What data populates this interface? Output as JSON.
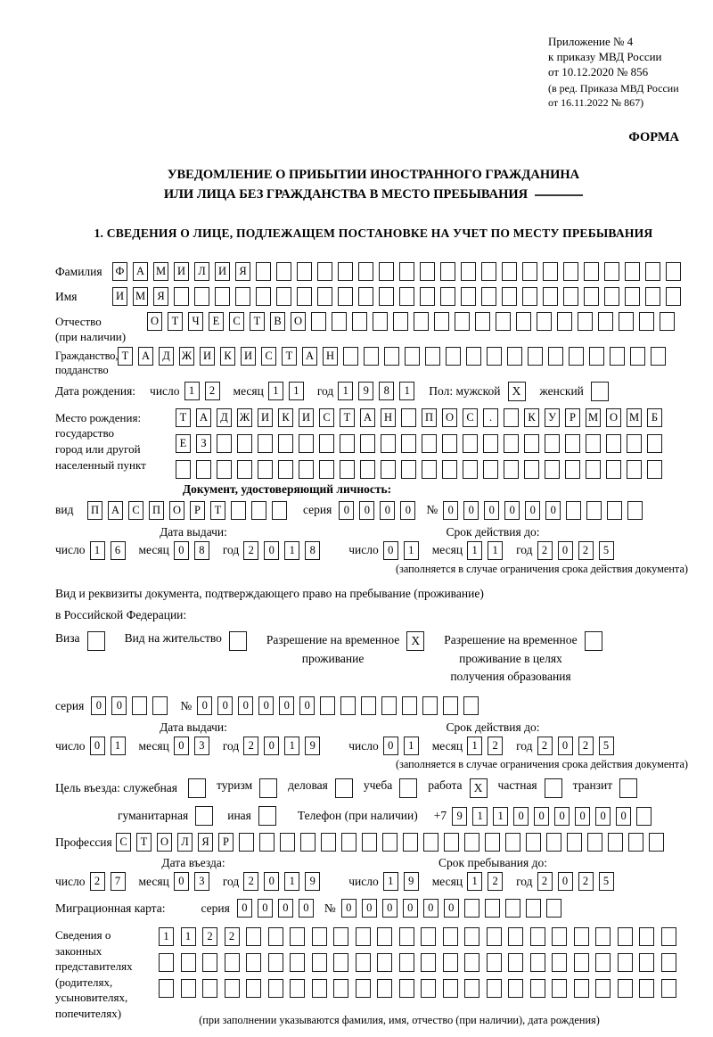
{
  "header": {
    "line1": "Приложение № 4",
    "line2": "к приказу МВД России",
    "line3": "от 10.12.2020 № 856",
    "line4": "(в ред. Приказа МВД России",
    "line5": "от 16.11.2022 № 867)",
    "form_label": "ФОРМА"
  },
  "title": {
    "line1": "УВЕДОМЛЕНИЕ О ПРИБЫТИИ ИНОСТРАННОГО ГРАЖДАНИНА",
    "line2": "ИЛИ ЛИЦА БЕЗ ГРАЖДАНСТВА В МЕСТО ПРЕБЫВАНИЯ"
  },
  "section1": {
    "heading": "1. СВЕДЕНИЯ О ЛИЦЕ, ПОДЛЕЖАЩЕМ ПОСТАНОВКЕ НА УЧЕТ ПО МЕСТУ ПРЕБЫВАНИЯ"
  },
  "labels": {
    "day": "число",
    "month": "месяц",
    "year": "год",
    "series": "серия",
    "number": "№"
  },
  "surname": {
    "label": "Фамилия",
    "n": 28,
    "v": "ФАМИЛИЯ"
  },
  "given_name": {
    "label": "Имя",
    "n": 28,
    "v": "ИМЯ"
  },
  "patronymic": {
    "label1": "Отчество",
    "label2": "(при наличии)",
    "n": 26,
    "v": "ОТЧЕСТВО"
  },
  "citizenship": {
    "label1": "Гражданство,",
    "label2": "подданство",
    "n": 27,
    "v": "ТАДЖИКИСТАН"
  },
  "birth_date": {
    "label": "Дата рождения:",
    "day": {
      "n": 2,
      "v": "12"
    },
    "month": {
      "n": 2,
      "v": "11"
    },
    "year": {
      "n": 4,
      "v": "1981"
    }
  },
  "sex": {
    "label": "Пол: мужской",
    "male_checked": true,
    "female_label": "женский",
    "female_checked": false
  },
  "birth_place": {
    "label1": "Место рождения:",
    "label2": "государство",
    "label3": "город или другой",
    "label4": "населенный пункт",
    "row1": {
      "n": 24,
      "v": "ТАДЖИКИСТАН ПОС. КУРМОМБ"
    },
    "row2": {
      "n": 24,
      "v": "ЕЗ"
    },
    "row3": {
      "n": 24,
      "v": ""
    }
  },
  "identity_doc": {
    "heading": "Документ, удостоверяющий личность:",
    "kind_label": "вид",
    "kind": {
      "n": 10,
      "v": "ПАСПОРТ"
    },
    "series": {
      "n": 4,
      "v": "0000"
    },
    "number": {
      "n": 10,
      "v": "000000"
    },
    "issue_head": "Дата выдачи:",
    "valid_head": "Срок действия до:",
    "issue": {
      "day": {
        "n": 2,
        "v": "16"
      },
      "month": {
        "n": 2,
        "v": "08"
      },
      "year": {
        "n": 4,
        "v": "2018"
      }
    },
    "valid": {
      "day": {
        "n": 2,
        "v": "01"
      },
      "month": {
        "n": 2,
        "v": "11"
      },
      "year": {
        "n": 4,
        "v": "2025"
      }
    },
    "note": "(заполняется в случае ограничения срока действия документа)"
  },
  "residence_doc": {
    "intro1": "Вид и реквизиты документа, подтверждающего право на пребывание (проживание)",
    "intro2": "в Российской Федерации:",
    "opt_visa": "Виза",
    "opt_visa_checked": false,
    "opt_residence": "Вид на жительство",
    "opt_residence_checked": false,
    "opt_temp1": "Разрешение на временное",
    "opt_temp2": "проживание",
    "opt_temp_checked": true,
    "opt_edu1": "Разрешение на временное",
    "opt_edu2": "проживание в целях",
    "opt_edu3": "получения образования",
    "opt_edu_checked": false,
    "series": {
      "n": 4,
      "v": "00"
    },
    "number": {
      "n": 14,
      "v": "000000"
    },
    "issue_head": "Дата выдачи:",
    "valid_head": "Срок действия до:",
    "issue": {
      "day": {
        "n": 2,
        "v": "01"
      },
      "month": {
        "n": 2,
        "v": "03"
      },
      "year": {
        "n": 4,
        "v": "2019"
      }
    },
    "valid": {
      "day": {
        "n": 2,
        "v": "01"
      },
      "month": {
        "n": 2,
        "v": "12"
      },
      "year": {
        "n": 4,
        "v": "2025"
      }
    },
    "note": "(заполняется в случае ограничения срока действия документа)"
  },
  "purpose": {
    "label": "Цель въезда: служебная",
    "options": [
      {
        "label": "туризм",
        "checked": false
      },
      {
        "label": "деловая",
        "checked": false
      },
      {
        "label": "учеба",
        "checked": false
      },
      {
        "label": "работа",
        "checked": true
      },
      {
        "label": "частная",
        "checked": false
      },
      {
        "label": "транзит",
        "checked": false
      }
    ],
    "first_checked": false,
    "options2": [
      {
        "label": "гуманитарная",
        "checked": false
      },
      {
        "label": "иная",
        "checked": false
      }
    ]
  },
  "phone": {
    "label": "Телефон (при наличии)",
    "prefix": "+7",
    "cells": {
      "n": 10,
      "v": "911000000"
    }
  },
  "profession": {
    "label": "Профессия",
    "n": 27,
    "v": "СТОЛЯР"
  },
  "stay": {
    "entry_head": "Дата въезда:",
    "until_head": "Срок пребывания до:",
    "entry": {
      "day": {
        "n": 2,
        "v": "27"
      },
      "month": {
        "n": 2,
        "v": "03"
      },
      "year": {
        "n": 4,
        "v": "2019"
      }
    },
    "until": {
      "day": {
        "n": 2,
        "v": "19"
      },
      "month": {
        "n": 2,
        "v": "12"
      },
      "year": {
        "n": 4,
        "v": "2025"
      }
    }
  },
  "migration_card": {
    "label": "Миграционная карта:",
    "series": {
      "n": 4,
      "v": "0000"
    },
    "number": {
      "n": 11,
      "v": "000000"
    }
  },
  "legal_reps": {
    "label1": "Сведения о",
    "label2": "законных",
    "label3": "представителях",
    "label4": "(родителях,",
    "label5": "усыновителях,",
    "label6": "попечителях)",
    "row1": {
      "n": 24,
      "v": "1122"
    },
    "row2": {
      "n": 24,
      "v": ""
    },
    "row3": {
      "n": 24,
      "v": ""
    },
    "note": "(при заполнении указываются фамилия, имя, отчество (при наличии), дата рождения)"
  }
}
